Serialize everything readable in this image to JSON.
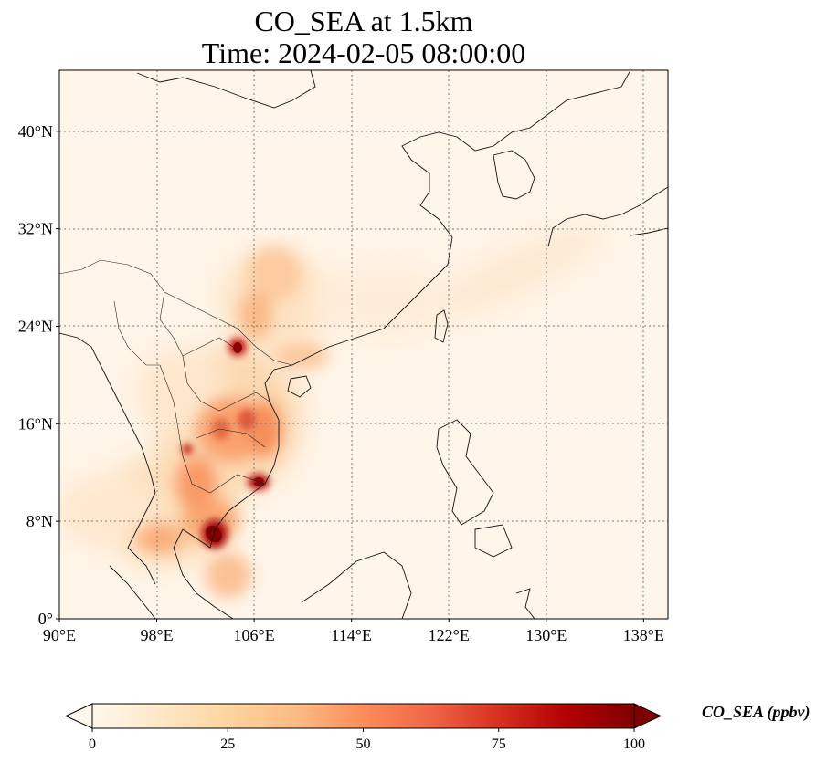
{
  "title": {
    "line1": "CO_SEA at 1.5km",
    "line2": "Time: 2024-02-05 08:00:00"
  },
  "map": {
    "projection": "PlateCarree",
    "lon_range": [
      90,
      140
    ],
    "lat_range": [
      0,
      45
    ],
    "gridlines": "dotted",
    "lon_ticks": [
      {
        "value": 90,
        "label": "90°E"
      },
      {
        "value": 98,
        "label": "98°E"
      },
      {
        "value": 106,
        "label": "106°E"
      },
      {
        "value": 114,
        "label": "114°E"
      },
      {
        "value": 122,
        "label": "122°E"
      },
      {
        "value": 130,
        "label": "130°E"
      },
      {
        "value": 138,
        "label": "138°E"
      }
    ],
    "lat_ticks": [
      {
        "value": 0,
        "label": "0°"
      },
      {
        "value": 8,
        "label": "8°N"
      },
      {
        "value": 16,
        "label": "16°N"
      },
      {
        "value": 24,
        "label": "24°N"
      },
      {
        "value": 32,
        "label": "32°N"
      },
      {
        "value": 40,
        "label": "40°N"
      }
    ]
  },
  "colorbar": {
    "label": "CO_SEA (ppbv)",
    "colormap": "OrRd",
    "range": [
      0,
      100
    ],
    "extend": "both",
    "ticks": [
      {
        "value": 0,
        "label": "0"
      },
      {
        "value": 25,
        "label": "25"
      },
      {
        "value": 50,
        "label": "50"
      },
      {
        "value": 75,
        "label": "75"
      },
      {
        "value": 100,
        "label": "100"
      }
    ]
  }
}
